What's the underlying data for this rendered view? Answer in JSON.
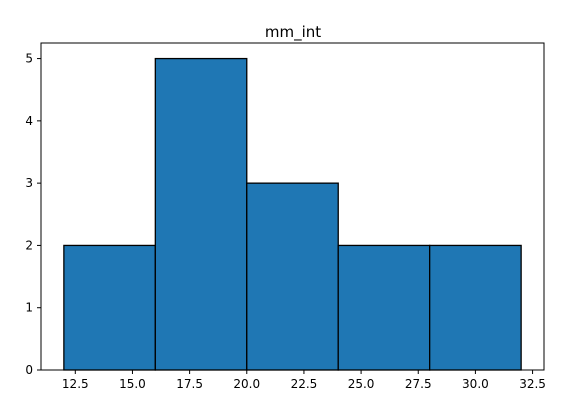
{
  "chart_data": {
    "type": "bar",
    "title": "mm_int",
    "xlabel": "",
    "ylabel": "",
    "bins": [
      {
        "start": 12,
        "end": 16,
        "count": 2
      },
      {
        "start": 16,
        "end": 20,
        "count": 5
      },
      {
        "start": 20,
        "end": 24,
        "count": 3
      },
      {
        "start": 24,
        "end": 28,
        "count": 2
      },
      {
        "start": 28,
        "end": 32,
        "count": 2
      }
    ],
    "xlim": [
      11.0,
      33.0
    ],
    "ylim": [
      0,
      5.25
    ],
    "x_ticks": [
      "12.5",
      "15.0",
      "17.5",
      "20.0",
      "22.5",
      "25.0",
      "27.5",
      "30.0",
      "32.5"
    ],
    "y_ticks": [
      "0",
      "1",
      "2",
      "3",
      "4",
      "5"
    ],
    "bar_color": "#1f77b4",
    "edge_color": "#000000",
    "grid": false,
    "legend": "none"
  }
}
